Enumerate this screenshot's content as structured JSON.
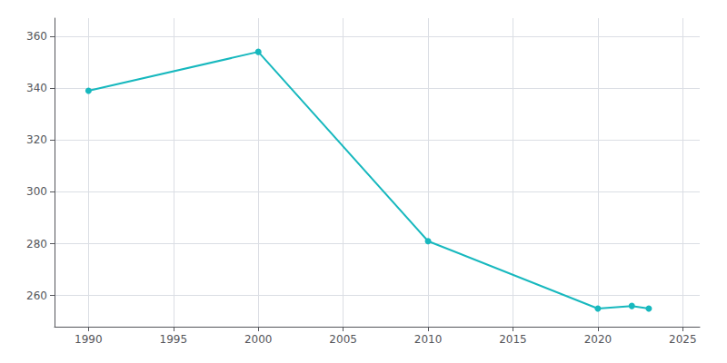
{
  "chart_data": {
    "type": "line",
    "x": [
      1990,
      2000,
      2010,
      2020,
      2022,
      2023
    ],
    "values": [
      339,
      354,
      281,
      255,
      256,
      255
    ],
    "color": "#17b8be",
    "marker": "circle",
    "xlim": [
      1988,
      2026
    ],
    "ylim": [
      248,
      367
    ],
    "xticks": [
      1990,
      1995,
      2000,
      2005,
      2010,
      2015,
      2020,
      2025
    ],
    "yticks": [
      260,
      280,
      300,
      320,
      340,
      360
    ],
    "grid": true
  }
}
